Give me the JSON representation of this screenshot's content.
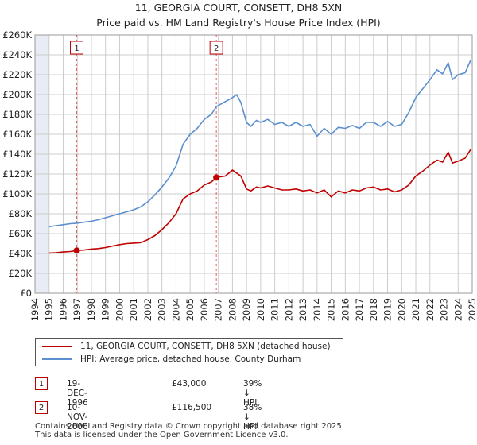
{
  "chart_data": {
    "type": "line",
    "title": "11, GEORGIA COURT, CONSETT, DH8 5XN",
    "subtitle": "Price paid vs. HM Land Registry's House Price Index (HPI)",
    "ylim": [
      0,
      260000
    ],
    "yticks": [
      0,
      20000,
      40000,
      60000,
      80000,
      100000,
      120000,
      140000,
      160000,
      180000,
      200000,
      220000,
      240000,
      260000
    ],
    "ytick_labels": [
      "£0",
      "£20K",
      "£40K",
      "£60K",
      "£80K",
      "£100K",
      "£120K",
      "£140K",
      "£160K",
      "£180K",
      "£200K",
      "£220K",
      "£240K",
      "£260K"
    ],
    "xlim": [
      1994.0,
      2025.0
    ],
    "xticks": [
      "1994",
      "1995",
      "1996",
      "1997",
      "1998",
      "1999",
      "2000",
      "2001",
      "2002",
      "2003",
      "2004",
      "2005",
      "2006",
      "2007",
      "2008",
      "2009",
      "2010",
      "2011",
      "2012",
      "2013",
      "2014",
      "2015",
      "2016",
      "2017",
      "2018",
      "2019",
      "2020",
      "2021",
      "2022",
      "2023",
      "2024",
      "2025"
    ],
    "data_start": 1995.0,
    "grid": true,
    "colors": {
      "price": "#c00000",
      "hpi": "#5b8fcf",
      "shade": "#e8edf5",
      "grid": "#cccccc"
    },
    "series": [
      {
        "name": "11, GEORGIA COURT, CONSETT, DH8 5XN (detached house)",
        "x": [
          1995.0,
          1995.5,
          1996.0,
          1996.5,
          1996.96,
          1997.5,
          1998.0,
          1998.5,
          1999.0,
          1999.5,
          2000.0,
          2000.5,
          2001.0,
          2001.5,
          2002.0,
          2002.5,
          2003.0,
          2003.5,
          2004.0,
          2004.5,
          2005.0,
          2005.5,
          2006.0,
          2006.5,
          2006.86,
          2007.0,
          2007.5,
          2008.0,
          2008.3,
          2008.6,
          2009.0,
          2009.3,
          2009.7,
          2010.0,
          2010.5,
          2011.0,
          2011.5,
          2012.0,
          2012.5,
          2013.0,
          2013.5,
          2014.0,
          2014.5,
          2015.0,
          2015.5,
          2016.0,
          2016.5,
          2017.0,
          2017.5,
          2018.0,
          2018.5,
          2019.0,
          2019.5,
          2020.0,
          2020.5,
          2021.0,
          2021.5,
          2022.0,
          2022.5,
          2022.9,
          2023.3,
          2023.6,
          2024.0,
          2024.5,
          2024.9
        ],
        "values": [
          40500,
          40800,
          41500,
          42000,
          43000,
          43500,
          44500,
          45000,
          46000,
          47500,
          49000,
          50000,
          50500,
          51000,
          54000,
          58000,
          64000,
          71000,
          80000,
          95000,
          100000,
          103000,
          109000,
          112000,
          116500,
          117000,
          118000,
          124000,
          121000,
          118000,
          105000,
          103000,
          107000,
          106000,
          108000,
          106000,
          104000,
          104000,
          105000,
          103000,
          104000,
          101000,
          104000,
          97000,
          103000,
          101000,
          104000,
          103000,
          106000,
          107000,
          104000,
          105000,
          102000,
          104000,
          109000,
          118000,
          123000,
          129000,
          134000,
          132000,
          142000,
          131000,
          133000,
          136000,
          145000
        ]
      },
      {
        "name": "HPI: Average price, detached house, County Durham",
        "x": [
          1995.0,
          1995.5,
          1996.0,
          1996.5,
          1996.96,
          1997.5,
          1998.0,
          1998.5,
          1999.0,
          1999.5,
          2000.0,
          2000.5,
          2001.0,
          2001.5,
          2002.0,
          2002.5,
          2003.0,
          2003.5,
          2004.0,
          2004.5,
          2005.0,
          2005.5,
          2006.0,
          2006.5,
          2006.86,
          2007.0,
          2007.5,
          2008.0,
          2008.3,
          2008.6,
          2009.0,
          2009.3,
          2009.7,
          2010.0,
          2010.5,
          2011.0,
          2011.5,
          2012.0,
          2012.5,
          2013.0,
          2013.5,
          2014.0,
          2014.5,
          2015.0,
          2015.5,
          2016.0,
          2016.5,
          2017.0,
          2017.5,
          2018.0,
          2018.5,
          2019.0,
          2019.5,
          2020.0,
          2020.5,
          2021.0,
          2021.5,
          2022.0,
          2022.5,
          2022.9,
          2023.3,
          2023.6,
          2024.0,
          2024.5,
          2024.9
        ],
        "values": [
          67000,
          68000,
          69000,
          70000,
          70500,
          71500,
          72500,
          74000,
          76000,
          78000,
          80000,
          82000,
          84000,
          87000,
          92000,
          99000,
          107000,
          116000,
          128000,
          150000,
          160000,
          166000,
          175000,
          180000,
          188000,
          189000,
          193000,
          197000,
          200000,
          192000,
          172000,
          168000,
          174000,
          172000,
          175000,
          170000,
          172000,
          168000,
          172000,
          168000,
          170000,
          158000,
          166000,
          160000,
          167000,
          166000,
          169000,
          166000,
          172000,
          172000,
          168000,
          173000,
          168000,
          170000,
          182000,
          197000,
          206000,
          215000,
          225000,
          221000,
          232000,
          215000,
          220000,
          222000,
          235000
        ]
      }
    ],
    "annotations": [
      {
        "label": "1",
        "x": 1996.96,
        "value": 43000
      },
      {
        "label": "2",
        "x": 2006.86,
        "value": 116500
      }
    ]
  },
  "legend": {
    "price_label": "11, GEORGIA COURT, CONSETT, DH8 5XN (detached house)",
    "hpi_label": "HPI: Average price, detached house, County Durham"
  },
  "transactions": [
    {
      "num": "1",
      "date": "19-DEC-1996",
      "price": "£43,000",
      "hpi": "39% ↓ HPI"
    },
    {
      "num": "2",
      "date": "10-NOV-2006",
      "price": "£116,500",
      "hpi": "38% ↓ HPI"
    }
  ],
  "footer": {
    "line1": "Contains HM Land Registry data © Crown copyright and database right 2025.",
    "line2": "This data is licensed under the Open Government Licence v3.0."
  }
}
